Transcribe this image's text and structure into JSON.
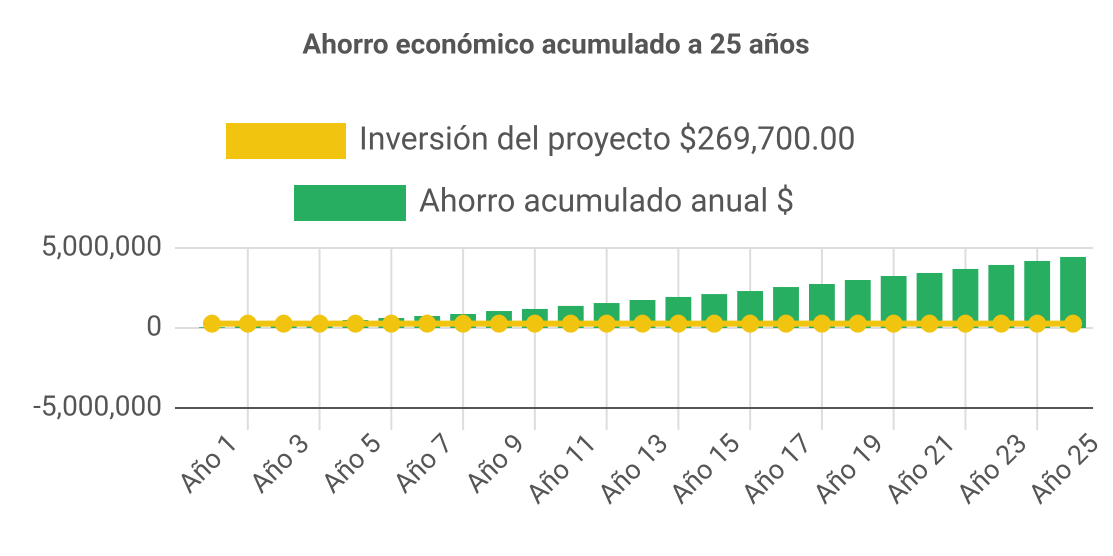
{
  "chart_data": {
    "type": "combo",
    "title": "Ahorro económico acumulado a 25 años",
    "categories": [
      "Año 1",
      null,
      "Año 3",
      null,
      "Año 5",
      null,
      "Año 7",
      null,
      "Año 9",
      null,
      "Año 11",
      null,
      "Año 13",
      null,
      "Año 15",
      null,
      "Año 17",
      null,
      "Año 19",
      null,
      "Año 21",
      null,
      "Año 23",
      null,
      "Año 25"
    ],
    "series": [
      {
        "name": "Inversión del proyecto $269,700.00",
        "type": "line",
        "color": "#f1c40f",
        "values": [
          269700,
          269700,
          269700,
          269700,
          269700,
          269700,
          269700,
          269700,
          269700,
          269700,
          269700,
          269700,
          269700,
          269700,
          269700,
          269700,
          269700,
          269700,
          269700,
          269700,
          269700,
          269700,
          269700,
          269700,
          269700
        ]
      },
      {
        "name": "Ahorro acumulado anual $",
        "type": "bar",
        "color": "#27ae60",
        "values": [
          50000,
          150000,
          250000,
          375000,
          500000,
          625000,
          750000,
          875000,
          1060000,
          1190000,
          1380000,
          1560000,
          1750000,
          1940000,
          2120000,
          2310000,
          2560000,
          2750000,
          3000000,
          3250000,
          3440000,
          3690000,
          3940000,
          4190000,
          4440000
        ]
      }
    ],
    "ylim": [
      -5000000,
      5000000
    ],
    "yticks": [
      {
        "value": -5000000,
        "label": "-5,000,000"
      },
      0,
      {
        "value": 5000000,
        "label": "5,000,000"
      }
    ],
    "grid": true
  }
}
